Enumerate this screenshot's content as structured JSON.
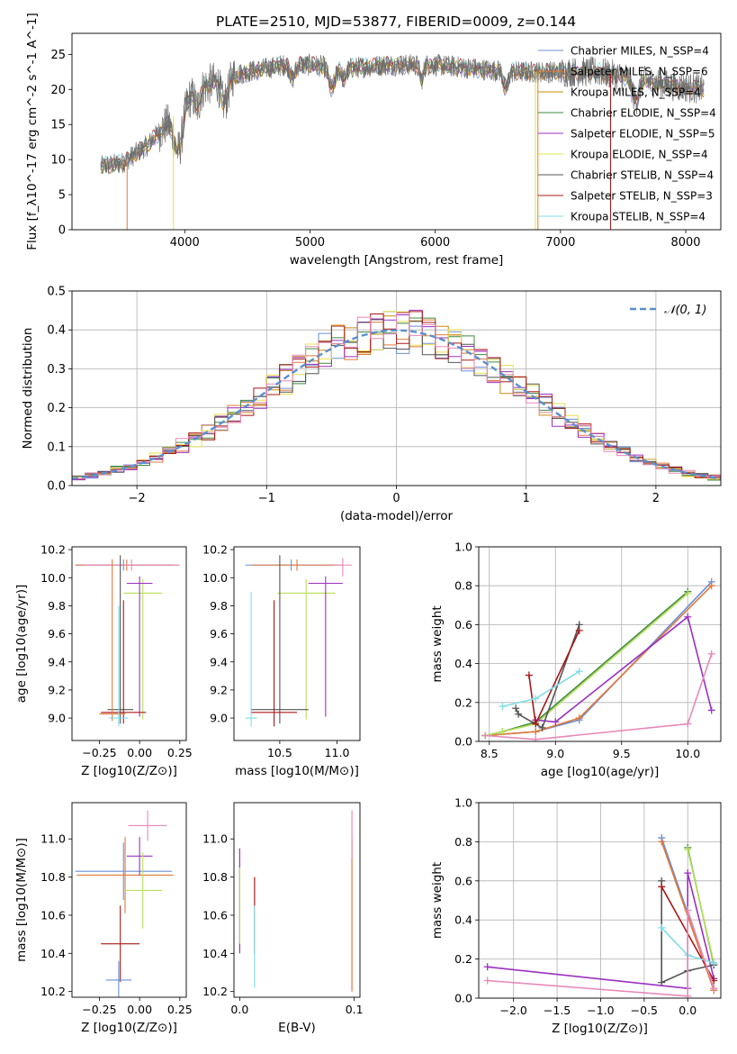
{
  "figure": {
    "title": "PLATE=2510, MJD=53877, FIBERID=0009, z=0.144"
  },
  "colors": {
    "chabrier_miles": "#6b8fd6",
    "salpeter_miles": "#e07a3a",
    "kroupa_miles": "#c98a10",
    "chabrier_elodie": "#3f8a3f",
    "salpeter_elodie": "#9b30c2",
    "kroupa_elodie": "#e6e24a",
    "chabrier_stelib": "#555555",
    "salpeter_stelib": "#a81818",
    "kroupa_stelib": "#7fdde6",
    "pink": "#e888b8",
    "lime": "#b8e05a",
    "normal_curve": "#5b8fd0"
  },
  "chart_data": [
    {
      "id": "spectrum",
      "type": "line",
      "title": "PLATE=2510, MJD=53877, FIBERID=0009, z=0.144",
      "xlabel": "wavelength [Angstrom, rest frame]",
      "ylabel": "Flux [f_λ10^-17 erg cm^-2 s^-1 A^-1]",
      "xlim": [
        3100,
        8280
      ],
      "ylim": [
        0,
        28
      ],
      "xticks": [
        4000,
        5000,
        6000,
        7000,
        8000
      ],
      "yticks": [
        0,
        5,
        10,
        15,
        20,
        25
      ],
      "grid": false,
      "legend_position": "top-right",
      "series": [
        {
          "name": "Chabrier MILES, N_SSP=4",
          "color_key": "chabrier_miles"
        },
        {
          "name": "Salpeter MILES, N_SSP=6",
          "color_key": "salpeter_miles"
        },
        {
          "name": "Kroupa MILES, N_SSP=4",
          "color_key": "kroupa_miles"
        },
        {
          "name": "Chabrier ELODIE, N_SSP=4",
          "color_key": "chabrier_elodie"
        },
        {
          "name": "Salpeter ELODIE, N_SSP=5",
          "color_key": "salpeter_elodie"
        },
        {
          "name": "Kroupa ELODIE, N_SSP=4",
          "color_key": "kroupa_elodie"
        },
        {
          "name": "Chabrier STELIB, N_SSP=4",
          "color_key": "chabrier_stelib"
        },
        {
          "name": "Salpeter STELIB, N_SSP=3",
          "color_key": "salpeter_stelib"
        },
        {
          "name": "Kroupa STELIB, N_SSP=4",
          "color_key": "kroupa_stelib"
        }
      ],
      "continuum": {
        "x": [
          3330,
          3500,
          3700,
          3900,
          4100,
          4300,
          4500,
          4800,
          5000,
          5300,
          5600,
          6000,
          6300,
          6600,
          7000,
          7300,
          7600,
          7900,
          8150
        ],
        "y": [
          9,
          9.5,
          12,
          16,
          20,
          21.5,
          22.5,
          23.5,
          23.5,
          23,
          23.5,
          23.5,
          23,
          22.5,
          22.5,
          22.5,
          21.5,
          20.5,
          20
        ]
      }
    },
    {
      "id": "residuals",
      "type": "line",
      "xlabel": "(data-model)/error",
      "ylabel": "Normed distribution",
      "xlim": [
        -2.5,
        2.5
      ],
      "ylim": [
        0,
        0.5
      ],
      "xticks": [
        -2,
        -1,
        0,
        1,
        2
      ],
      "yticks": [
        0.0,
        0.1,
        0.2,
        0.3,
        0.4,
        0.5
      ],
      "grid": true,
      "legend": [
        "𝒩(0, 1)"
      ],
      "legend_position": "top-right",
      "histogram_bins": 50,
      "histogram_series": 9
    },
    {
      "id": "age_vs_Z",
      "type": "scatter",
      "xlabel": "Z [log10(Z/Z⊙)]",
      "ylabel": "age [log10(age/yr)]",
      "xlim": [
        -0.42,
        0.29
      ],
      "ylim": [
        8.84,
        10.22
      ],
      "xticks": [
        -0.25,
        0.0,
        0.25
      ],
      "yticks": [
        9.0,
        9.2,
        9.4,
        9.6,
        9.8,
        10.0,
        10.2
      ],
      "grid": false,
      "points": [
        {
          "x": -0.1,
          "y": 10.09,
          "xerr": 0.3,
          "yerr_lo": 0.04,
          "yerr_hi": 0.04,
          "color_key": "chabrier_miles"
        },
        {
          "x": -0.08,
          "y": 10.09,
          "xerr": 0.32,
          "yerr_lo": 0.04,
          "yerr_hi": 0.04,
          "color_key": "salpeter_miles"
        },
        {
          "x": -0.05,
          "y": 10.09,
          "xerr": 0.3,
          "yerr_lo": 0.04,
          "yerr_hi": 0.04,
          "color_key": "pink"
        },
        {
          "x": 0.02,
          "y": 9.89,
          "xerr": 0.12,
          "yerr_lo": 0.9,
          "yerr_hi": 0.1,
          "color_key": "lime"
        },
        {
          "x": 0.0,
          "y": 9.96,
          "xerr": 0.08,
          "yerr_lo": 0.95,
          "yerr_hi": 0.05,
          "color_key": "salpeter_elodie"
        },
        {
          "x": -0.12,
          "y": 9.06,
          "xerr": 0.08,
          "yerr_lo": 0.1,
          "yerr_hi": 1.1,
          "color_key": "chabrier_stelib"
        },
        {
          "x": -0.1,
          "y": 9.04,
          "xerr": 0.14,
          "yerr_lo": 0.08,
          "yerr_hi": 0.8,
          "color_key": "salpeter_stelib"
        },
        {
          "x": -0.17,
          "y": 9.03,
          "xerr": 0.08,
          "yerr_lo": 0.05,
          "yerr_hi": 1.1,
          "color_key": "salpeter_miles"
        },
        {
          "x": -0.13,
          "y": 9.0,
          "xerr": 0.06,
          "yerr_lo": 0.06,
          "yerr_hi": 0.8,
          "color_key": "kroupa_stelib"
        }
      ]
    },
    {
      "id": "age_vs_mass",
      "type": "scatter",
      "xlabel": "mass [log10(M/M⊙)]",
      "ylabel": "",
      "xlim": [
        10.1,
        11.2
      ],
      "ylim": [
        8.84,
        10.22
      ],
      "xticks": [
        10.5,
        11.0
      ],
      "yticks": [
        9.0,
        9.2,
        9.4,
        9.6,
        9.8,
        10.0,
        10.2
      ],
      "grid": false,
      "points": [
        {
          "x": 10.6,
          "y": 10.09,
          "xerr": 0.4,
          "yerr_lo": 0.04,
          "yerr_hi": 0.04,
          "color_key": "chabrier_miles"
        },
        {
          "x": 10.65,
          "y": 10.09,
          "xerr": 0.4,
          "yerr_lo": 0.04,
          "yerr_hi": 0.04,
          "color_key": "salpeter_miles"
        },
        {
          "x": 11.05,
          "y": 10.09,
          "xerr": 0.08,
          "yerr_lo": 0.08,
          "yerr_hi": 0.05,
          "color_key": "pink"
        },
        {
          "x": 10.73,
          "y": 9.89,
          "xerr": 0.25,
          "yerr_lo": 0.9,
          "yerr_hi": 0.1,
          "color_key": "lime"
        },
        {
          "x": 10.9,
          "y": 9.96,
          "xerr": 0.15,
          "yerr_lo": 0.95,
          "yerr_hi": 0.05,
          "color_key": "salpeter_elodie"
        },
        {
          "x": 10.5,
          "y": 9.06,
          "xerr": 0.25,
          "yerr_lo": 0.1,
          "yerr_hi": 1.1,
          "color_key": "chabrier_stelib"
        },
        {
          "x": 10.45,
          "y": 9.04,
          "xerr": 0.2,
          "yerr_lo": 0.1,
          "yerr_hi": 0.8,
          "color_key": "salpeter_stelib"
        },
        {
          "x": 10.25,
          "y": 9.0,
          "xerr": 0.05,
          "yerr_lo": 0.06,
          "yerr_hi": 0.9,
          "color_key": "kroupa_stelib"
        }
      ]
    },
    {
      "id": "weight_vs_age",
      "type": "line",
      "xlabel": "age [log10(age/yr)]",
      "ylabel": "mass weight",
      "xlim": [
        8.42,
        10.25
      ],
      "ylim": [
        0,
        1.0
      ],
      "xticks": [
        8.5,
        9.0,
        9.5,
        10.0
      ],
      "yticks": [
        0.0,
        0.2,
        0.4,
        0.6,
        0.8,
        1.0
      ],
      "grid": true,
      "series": [
        {
          "color_key": "chabrier_miles",
          "x": [
            8.47,
            8.85,
            9.18,
            10.18
          ],
          "y": [
            0.03,
            0.05,
            0.11,
            0.82
          ]
        },
        {
          "color_key": "salpeter_miles",
          "x": [
            8.47,
            8.85,
            9.18,
            10.18
          ],
          "y": [
            0.03,
            0.05,
            0.12,
            0.8
          ]
        },
        {
          "color_key": "chabrier_elodie",
          "x": [
            8.47,
            8.6,
            8.85,
            10.0
          ],
          "y": [
            0.03,
            0.05,
            0.1,
            0.77
          ]
        },
        {
          "color_key": "lime",
          "x": [
            8.47,
            8.6,
            8.85,
            10.0
          ],
          "y": [
            0.03,
            0.05,
            0.09,
            0.76
          ]
        },
        {
          "color_key": "salpeter_elodie",
          "x": [
            8.85,
            9.0,
            10.0,
            10.18
          ],
          "y": [
            0.11,
            0.1,
            0.64,
            0.16
          ]
        },
        {
          "color_key": "chabrier_stelib",
          "x": [
            8.7,
            8.72,
            8.9,
            9.18
          ],
          "y": [
            0.17,
            0.14,
            0.07,
            0.6
          ]
        },
        {
          "color_key": "salpeter_stelib",
          "x": [
            8.8,
            8.85,
            9.18
          ],
          "y": [
            0.34,
            0.09,
            0.57
          ]
        },
        {
          "color_key": "kroupa_stelib",
          "x": [
            8.6,
            8.85,
            9.18
          ],
          "y": [
            0.18,
            0.22,
            0.36
          ]
        },
        {
          "color_key": "pink",
          "x": [
            8.47,
            8.85,
            10.0,
            10.18
          ],
          "y": [
            0.03,
            0.01,
            0.09,
            0.45
          ]
        }
      ]
    },
    {
      "id": "mass_vs_Z",
      "type": "scatter",
      "xlabel": "Z [log10(Z/Z⊙)]",
      "ylabel": "mass [log10(M/M⊙)]",
      "xlim": [
        -0.42,
        0.29
      ],
      "ylim": [
        10.17,
        11.19
      ],
      "xticks": [
        -0.25,
        0.0,
        0.25
      ],
      "yticks": [
        10.2,
        10.4,
        10.6,
        10.8,
        11.0
      ],
      "grid": false,
      "points": [
        {
          "x": -0.1,
          "y": 10.83,
          "xerr": 0.3,
          "yerr": 0.15,
          "color_key": "chabrier_miles"
        },
        {
          "x": -0.09,
          "y": 10.81,
          "xerr": 0.3,
          "yerr": 0.2,
          "color_key": "salpeter_miles"
        },
        {
          "x": 0.05,
          "y": 11.07,
          "xerr": 0.12,
          "yerr": 0.08,
          "color_key": "pink"
        },
        {
          "x": 0.0,
          "y": 10.91,
          "xerr": 0.08,
          "yerr": 0.1,
          "color_key": "salpeter_elodie"
        },
        {
          "x": 0.02,
          "y": 10.73,
          "xerr": 0.12,
          "yerr": 0.2,
          "color_key": "lime"
        },
        {
          "x": -0.12,
          "y": 10.45,
          "xerr": 0.12,
          "yerr": 0.2,
          "color_key": "salpeter_stelib"
        },
        {
          "x": -0.13,
          "y": 10.26,
          "xerr": 0.08,
          "yerr": 0.1,
          "color_key": "chabrier_miles"
        }
      ]
    },
    {
      "id": "mass_vs_ebv",
      "type": "scatter",
      "xlabel": "E(B-V)",
      "ylabel": "",
      "xlim": [
        -0.005,
        0.105
      ],
      "ylim": [
        10.17,
        11.19
      ],
      "xticks": [
        0.0,
        0.1
      ],
      "yticks": [
        10.2,
        10.4,
        10.6,
        10.8,
        11.0
      ],
      "grid": false,
      "segments": [
        {
          "x": 0.0,
          "y_lo": 10.4,
          "y_hi": 10.95,
          "color_key": "salpeter_elodie"
        },
        {
          "x": 0.0,
          "y_lo": 10.45,
          "y_hi": 10.85,
          "color_key": "lime"
        },
        {
          "x": 0.013,
          "y_lo": 10.4,
          "y_hi": 10.8,
          "color_key": "salpeter_stelib"
        },
        {
          "x": 0.013,
          "y_lo": 10.22,
          "y_hi": 10.65,
          "color_key": "kroupa_stelib"
        },
        {
          "x": 0.098,
          "y_lo": 10.2,
          "y_hi": 11.0,
          "color_key": "salpeter_miles"
        },
        {
          "x": 0.098,
          "y_lo": 10.9,
          "y_hi": 11.15,
          "color_key": "pink"
        }
      ]
    },
    {
      "id": "weight_vs_Z",
      "type": "line",
      "xlabel": "Z [log10(Z/Z⊙)]",
      "ylabel": "mass weight",
      "xlim": [
        -2.4,
        0.38
      ],
      "ylim": [
        0,
        1.0
      ],
      "xticks": [
        -2.0,
        -1.5,
        -1.0,
        -0.5,
        0.0
      ],
      "yticks": [
        0.0,
        0.2,
        0.4,
        0.6,
        0.8,
        1.0
      ],
      "grid": true,
      "series": [
        {
          "color_key": "chabrier_miles",
          "x": [
            -0.3,
            0.3
          ],
          "y": [
            0.82,
            0.05
          ]
        },
        {
          "color_key": "salpeter_miles",
          "x": [
            -0.3,
            0.3
          ],
          "y": [
            0.8,
            0.04
          ]
        },
        {
          "color_key": "chabrier_elodie",
          "x": [
            0.0,
            0.3
          ],
          "y": [
            0.77,
            0.17
          ]
        },
        {
          "color_key": "lime",
          "x": [
            0.0,
            0.3
          ],
          "y": [
            0.76,
            0.18
          ]
        },
        {
          "color_key": "salpeter_elodie",
          "x": [
            -2.3,
            0.0,
            0.0,
            0.3
          ],
          "y": [
            0.16,
            0.05,
            0.64,
            0.1
          ]
        },
        {
          "color_key": "chabrier_stelib",
          "x": [
            -0.3,
            -0.3,
            0.0,
            0.3
          ],
          "y": [
            0.6,
            0.08,
            0.14,
            0.17
          ]
        },
        {
          "color_key": "salpeter_stelib",
          "x": [
            -0.3,
            0.3
          ],
          "y": [
            0.57,
            0.09
          ]
        },
        {
          "color_key": "kroupa_stelib",
          "x": [
            -0.3,
            0.0,
            0.3
          ],
          "y": [
            0.36,
            0.22,
            0.18
          ]
        },
        {
          "color_key": "pink",
          "x": [
            -2.3,
            0.0,
            0.0,
            0.3
          ],
          "y": [
            0.09,
            0.01,
            0.45,
            0.05
          ]
        }
      ]
    }
  ]
}
